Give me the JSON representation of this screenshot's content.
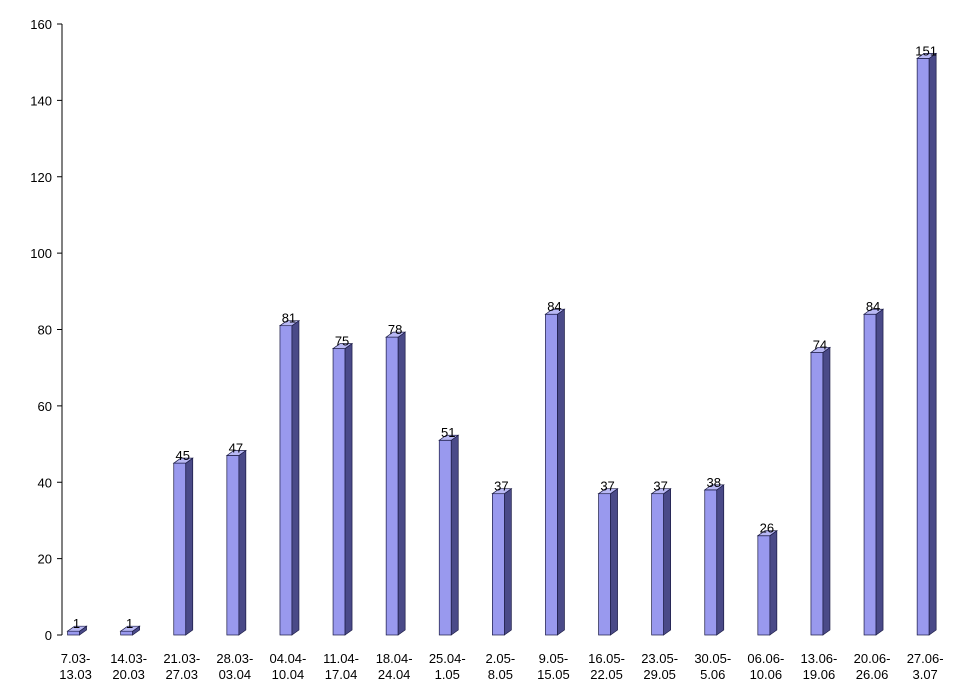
{
  "chart_data": {
    "type": "bar",
    "title": "",
    "xlabel": "",
    "ylabel": "",
    "ylim": [
      0,
      160
    ],
    "yticks": [
      0,
      20,
      40,
      60,
      80,
      100,
      120,
      140,
      160
    ],
    "grid": false,
    "legend": "none",
    "bar_style": "3d",
    "colors": {
      "front": "#9999ee",
      "side": "#4a4a88",
      "top": "#b8b8f4",
      "outline": "#1a1a44"
    },
    "categories": [
      [
        "7.03-",
        "13.03"
      ],
      [
        "14.03-",
        "20.03"
      ],
      [
        "21.03-",
        "27.03"
      ],
      [
        "28.03-",
        "03.04"
      ],
      [
        "04.04-",
        "10.04"
      ],
      [
        "11.04-",
        "17.04"
      ],
      [
        "18.04-",
        "24.04"
      ],
      [
        "25.04-",
        "1.05"
      ],
      [
        "2.05-",
        "8.05"
      ],
      [
        "9.05-",
        "15.05"
      ],
      [
        "16.05-",
        "22.05"
      ],
      [
        "23.05-",
        "29.05"
      ],
      [
        "30.05-",
        "5.06"
      ],
      [
        "06.06-",
        "10.06"
      ],
      [
        "13.06-",
        "19.06"
      ],
      [
        "20.06-",
        "26.06"
      ],
      [
        "27.06-",
        "3.07"
      ]
    ],
    "values": [
      1,
      1,
      45,
      47,
      81,
      75,
      78,
      51,
      37,
      84,
      37,
      37,
      38,
      26,
      74,
      84,
      151
    ]
  }
}
